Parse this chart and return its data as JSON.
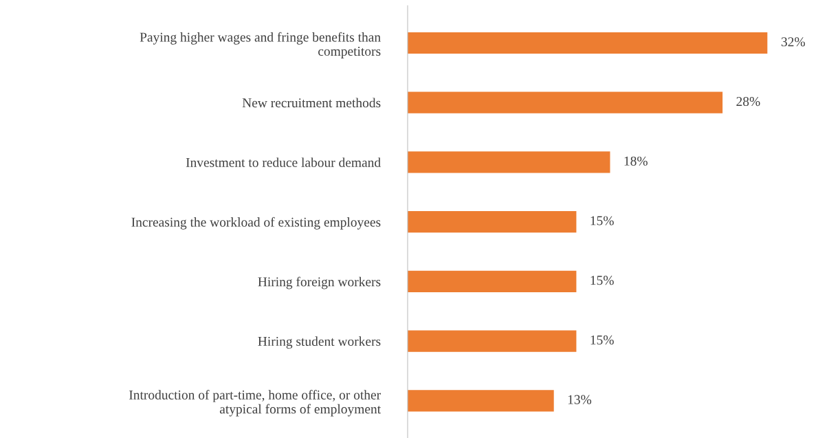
{
  "chart_data": {
    "type": "bar",
    "orientation": "horizontal",
    "categories": [
      "Paying higher wages and fringe benefits than\ncompetitors",
      "New recruitment methods",
      "Investment to reduce labour demand",
      "Increasing the workload of existing employees",
      "Hiring foreign workers",
      "Hiring student workers",
      "Introduction of part-time, home office, or other\natypical forms of employment"
    ],
    "values": [
      32,
      28,
      18,
      15,
      15,
      15,
      13
    ],
    "value_labels": [
      "32%",
      "28%",
      "18%",
      "15%",
      "15%",
      "15%",
      "13%"
    ],
    "color": "#ed7d31",
    "grid": false,
    "legend": false
  }
}
